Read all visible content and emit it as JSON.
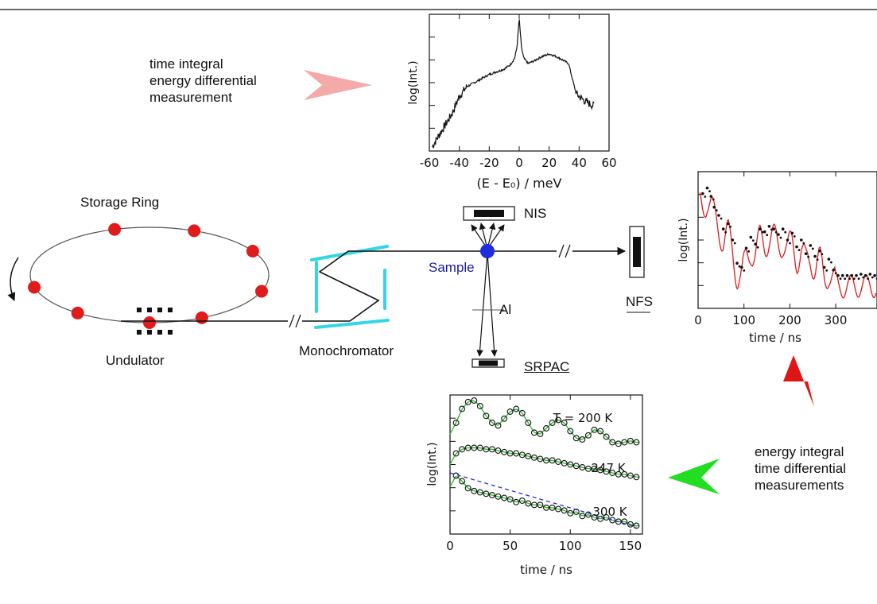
{
  "labels": {
    "storage_ring": "Storage Ring",
    "undulator": "Undulator",
    "monochromator": "Monochromator",
    "sample": "Sample",
    "nis": "NIS",
    "nfs": "NFS",
    "srpac": "SRPAC",
    "al": "Al",
    "energy_meas": [
      "time integral",
      "energy differential",
      "measurement"
    ],
    "time_meas": [
      "energy integral",
      "time differential",
      "measurements"
    ]
  },
  "colors": {
    "electron": "#e01b1b",
    "mirror": "#33d6e6",
    "sample": "#1f2de0",
    "beam": "#111111",
    "arrow_energy": "#f4aaa8",
    "arrow_nfs": "#e01616",
    "arrow_time": "#22dd22",
    "nfs_fit": "#e01b1b",
    "srpac_fit": "#33bb33",
    "srpac_dash": "#2a2ad0"
  },
  "chart_data": [
    {
      "id": "nis-spectrum",
      "type": "line",
      "xlabel": "(E - E₀) / meV",
      "ylabel": "log(Int.)",
      "xlim": [
        -60,
        60
      ],
      "ylim": [
        0,
        1
      ],
      "yscale": "log",
      "xticks": [
        -60,
        -40,
        -20,
        0,
        20,
        40,
        60
      ],
      "x": [
        -58,
        -55,
        -50,
        -45,
        -40,
        -35,
        -30,
        -25,
        -20,
        -15,
        -10,
        -6,
        -3,
        -1.5,
        0,
        1.5,
        3,
        6,
        10,
        15,
        20,
        25,
        30,
        33,
        35,
        38,
        42,
        46,
        50
      ],
      "y": [
        0.03,
        0.09,
        0.18,
        0.27,
        0.4,
        0.47,
        0.5,
        0.53,
        0.56,
        0.58,
        0.6,
        0.63,
        0.68,
        0.76,
        0.97,
        0.76,
        0.68,
        0.64,
        0.66,
        0.69,
        0.71,
        0.69,
        0.66,
        0.64,
        0.55,
        0.42,
        0.38,
        0.35,
        0.33
      ]
    },
    {
      "id": "nfs-decay",
      "type": "scatter",
      "xlabel": "time / ns",
      "ylabel": "log(Int.)",
      "xlim": [
        0,
        390
      ],
      "ylim": [
        0,
        1
      ],
      "yscale": "log",
      "xticks": [
        0,
        100,
        200,
        300
      ],
      "x": [
        10,
        20,
        28,
        35,
        45,
        55,
        65,
        75,
        85,
        95,
        105,
        115,
        125,
        135,
        145,
        155,
        165,
        175,
        185,
        195,
        205,
        215,
        225,
        235,
        245,
        255,
        265,
        275,
        285,
        295,
        305,
        315,
        325,
        335,
        345,
        355,
        365,
        375,
        385
      ],
      "y": [
        0.84,
        0.88,
        0.82,
        0.74,
        0.68,
        0.58,
        0.62,
        0.5,
        0.33,
        0.3,
        0.44,
        0.52,
        0.47,
        0.58,
        0.56,
        0.6,
        0.58,
        0.54,
        0.58,
        0.5,
        0.55,
        0.45,
        0.5,
        0.4,
        0.46,
        0.38,
        0.42,
        0.3,
        0.36,
        0.28,
        0.24,
        0.24,
        0.24,
        0.24,
        0.24,
        0.25,
        0.24,
        0.25,
        0.24
      ]
    },
    {
      "id": "srpac-curves",
      "type": "scatter",
      "xlabel": "time / ns",
      "ylabel": "log(Int.)",
      "xlim": [
        0,
        160
      ],
      "ylim": [
        0,
        1
      ],
      "yscale": "log",
      "xticks": [
        0,
        50,
        100,
        150
      ],
      "series": [
        {
          "name": "T = 200 K",
          "x": [
            5,
            10,
            15,
            20,
            25,
            30,
            35,
            40,
            45,
            50,
            55,
            60,
            65,
            70,
            75,
            80,
            85,
            90,
            95,
            100,
            105,
            110,
            115,
            120,
            125,
            130,
            135,
            140,
            145,
            150,
            155
          ],
          "y": [
            0.8,
            0.9,
            0.95,
            0.96,
            0.92,
            0.85,
            0.8,
            0.78,
            0.83,
            0.88,
            0.9,
            0.87,
            0.8,
            0.73,
            0.72,
            0.76,
            0.8,
            0.82,
            0.8,
            0.74,
            0.69,
            0.68,
            0.71,
            0.75,
            0.74,
            0.7,
            0.66,
            0.65,
            0.66,
            0.67,
            0.66
          ]
        },
        {
          "name": "247 K",
          "x": [
            5,
            10,
            15,
            20,
            25,
            30,
            35,
            40,
            45,
            50,
            55,
            60,
            65,
            70,
            75,
            80,
            85,
            90,
            95,
            100,
            105,
            110,
            115,
            120,
            125,
            130,
            135,
            140,
            145,
            150,
            155
          ],
          "y": [
            0.58,
            0.61,
            0.62,
            0.62,
            0.62,
            0.61,
            0.61,
            0.6,
            0.59,
            0.58,
            0.58,
            0.57,
            0.56,
            0.55,
            0.54,
            0.53,
            0.53,
            0.52,
            0.51,
            0.5,
            0.49,
            0.48,
            0.47,
            0.47,
            0.46,
            0.45,
            0.44,
            0.43,
            0.43,
            0.42,
            0.41
          ]
        },
        {
          "name": "300 K",
          "x": [
            5,
            10,
            15,
            20,
            25,
            30,
            35,
            40,
            45,
            50,
            55,
            60,
            65,
            70,
            75,
            80,
            85,
            90,
            95,
            100,
            105,
            110,
            115,
            120,
            125,
            130,
            135,
            140,
            145,
            150,
            155
          ],
          "y": [
            0.42,
            0.38,
            0.33,
            0.31,
            0.3,
            0.29,
            0.28,
            0.27,
            0.26,
            0.25,
            0.23,
            0.24,
            0.22,
            0.21,
            0.21,
            0.19,
            0.19,
            0.18,
            0.17,
            0.15,
            0.16,
            0.13,
            0.14,
            0.12,
            0.11,
            0.12,
            0.1,
            0.09,
            0.09,
            0.07,
            0.06
          ]
        }
      ]
    }
  ]
}
